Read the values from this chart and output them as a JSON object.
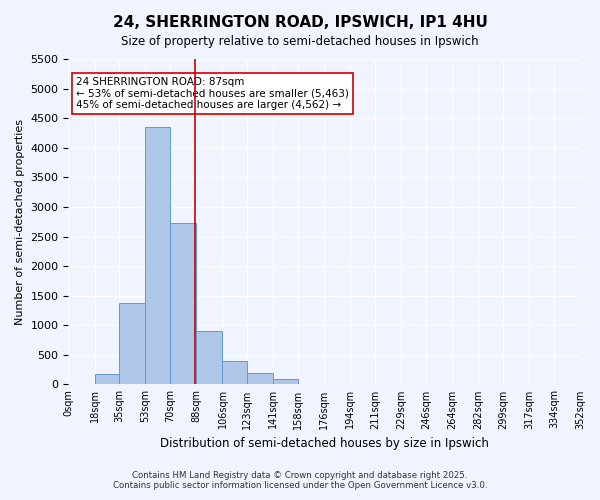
{
  "title": "24, SHERRINGTON ROAD, IPSWICH, IP1 4HU",
  "subtitle": "Size of property relative to semi-detached houses in Ipswich",
  "xlabel": "Distribution of semi-detached houses by size in Ipswich",
  "ylabel": "Number of semi-detached properties",
  "bin_labels": [
    "0sqm",
    "18sqm",
    "35sqm",
    "53sqm",
    "70sqm",
    "88sqm",
    "106sqm",
    "123sqm",
    "141sqm",
    "158sqm",
    "176sqm",
    "194sqm",
    "211sqm",
    "229sqm",
    "246sqm",
    "264sqm",
    "282sqm",
    "299sqm",
    "317sqm",
    "334sqm",
    "352sqm"
  ],
  "bin_edges": [
    0,
    18,
    35,
    53,
    70,
    88,
    106,
    123,
    141,
    158,
    176,
    194,
    211,
    229,
    246,
    264,
    282,
    299,
    317,
    334,
    352
  ],
  "bar_heights": [
    10,
    170,
    1380,
    4350,
    2720,
    900,
    400,
    190,
    90,
    0,
    0,
    0,
    0,
    0,
    0,
    0,
    0,
    0,
    0,
    0
  ],
  "bar_color": "#aec6e8",
  "bar_edge_color": "#5b9bd5",
  "property_size": 87,
  "property_line_color": "#cc0000",
  "annotation_text": "24 SHERRINGTON ROAD: 87sqm\n← 53% of semi-detached houses are smaller (5,463)\n45% of semi-detached houses are larger (4,562) →",
  "annotation_box_color": "#ffffff",
  "annotation_box_edge_color": "#cc0000",
  "ylim": [
    0,
    5500
  ],
  "yticks": [
    0,
    500,
    1000,
    1500,
    2000,
    2500,
    3000,
    3500,
    4000,
    4500,
    5000,
    5500
  ],
  "footer_line1": "Contains HM Land Registry data © Crown copyright and database right 2025.",
  "footer_line2": "Contains public sector information licensed under the Open Government Licence v3.0.",
  "background_color": "#f0f4ff"
}
